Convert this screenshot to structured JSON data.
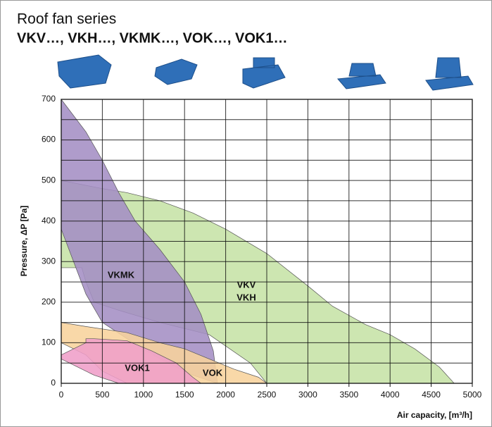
{
  "chart_data": {
    "type": "area",
    "title": "Roof fan series",
    "subtitle": "VKV…, VKH…, VKMK…, VOK…, VOK1…",
    "x_label": "Air capacity, [m³/h]",
    "y_label": "Pressure, ΔP [Pa]",
    "xlim": [
      0,
      5000
    ],
    "ylim": [
      0,
      700
    ],
    "xticks": [
      0,
      500,
      1000,
      1500,
      2000,
      2500,
      3000,
      3500,
      4000,
      4500,
      5000
    ],
    "yticks": [
      0,
      100,
      200,
      300,
      400,
      500,
      600,
      700
    ],
    "yminor_ticks": [
      50,
      150,
      250,
      350,
      450,
      550,
      650
    ],
    "grid": true,
    "series": [
      {
        "labels": [
          "VKV",
          "VKH"
        ],
        "color": "#c6e2a6",
        "x": [
          0,
          500,
          800,
          1200,
          1600,
          2000,
          2500,
          3000,
          3300,
          3700,
          4000,
          4300,
          4600,
          4780,
          2500,
          2300,
          1800,
          1200,
          700,
          400,
          300,
          250,
          0
        ],
        "values": [
          500,
          480,
          470,
          450,
          420,
          380,
          320,
          240,
          190,
          145,
          120,
          85,
          40,
          0,
          0,
          50,
          120,
          150,
          180,
          200,
          250,
          285,
          285
        ]
      },
      {
        "labels": [
          "VKMK"
        ],
        "color": "#a48ec4",
        "x": [
          0,
          300,
          500,
          700,
          900,
          1200,
          1500,
          1700,
          1850,
          1900,
          1600,
          1200,
          800,
          500,
          300,
          0
        ],
        "values": [
          700,
          620,
          550,
          470,
          400,
          330,
          250,
          170,
          80,
          0,
          20,
          60,
          110,
          150,
          220,
          380
        ]
      },
      {
        "labels": [
          "VOK"
        ],
        "color": "#f8d39c",
        "x": [
          0,
          300,
          800,
          1200,
          1500,
          1800,
          2100,
          2400,
          2500,
          800,
          500,
          300,
          0
        ],
        "values": [
          150,
          140,
          125,
          100,
          85,
          60,
          35,
          15,
          0,
          0,
          30,
          70,
          100
        ]
      },
      {
        "labels": [
          "VOK1"
        ],
        "color": "#ef9ec8",
        "x": [
          0,
          300,
          300,
          400,
          800,
          1100,
          1400,
          1600,
          1700,
          700,
          400,
          0
        ],
        "values": [
          70,
          100,
          110,
          110,
          105,
          80,
          50,
          15,
          0,
          0,
          20,
          60
        ]
      }
    ]
  }
}
